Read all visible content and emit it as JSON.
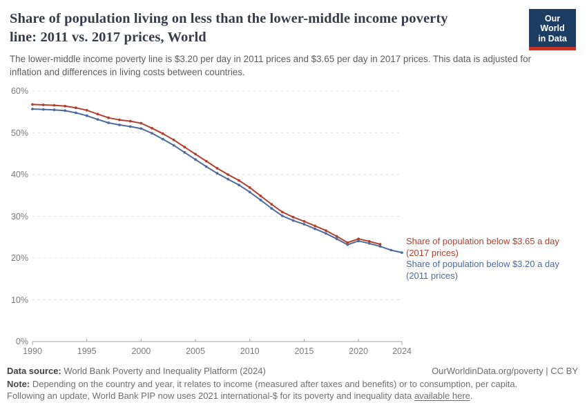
{
  "header": {
    "title": "Share of population living on less than the lower-middle income poverty line: 2011 vs. 2017 prices, World",
    "subtitle": "The lower-middle income poverty line is $3.20 per day in 2011 prices and $3.65 per day in 2017 prices. This data is adjusted for inflation and differences in living costs between countries.",
    "logo": {
      "line1": "Our World",
      "line2": "in Data"
    }
  },
  "chart_data": {
    "type": "line",
    "title": "Share of population living on less than the lower-middle income poverty line: 2011 vs. 2017 prices, World",
    "xlabel": "",
    "ylabel": "",
    "xlim": [
      1990,
      2024
    ],
    "ylim": [
      0,
      60
    ],
    "x_ticks": [
      1990,
      1995,
      2000,
      2005,
      2010,
      2015,
      2020,
      2024
    ],
    "y_ticks": [
      0,
      10,
      20,
      30,
      40,
      50,
      60
    ],
    "y_tick_suffix": "%",
    "grid": "horizontal-dashed",
    "legend_position": "right-of-line-ends",
    "series": [
      {
        "name": "Share of population below $3.65 a day (2017 prices)",
        "label_line1": "Share of population below $3.65 a day",
        "label_line2": "(2017 prices)",
        "color": "#b0402d",
        "years": [
          1990,
          1991,
          1992,
          1993,
          1994,
          1995,
          1996,
          1997,
          1998,
          1999,
          2000,
          2001,
          2002,
          2003,
          2004,
          2005,
          2006,
          2007,
          2008,
          2009,
          2010,
          2011,
          2012,
          2013,
          2014,
          2015,
          2016,
          2017,
          2018,
          2019,
          2020,
          2021,
          2022
        ],
        "values": [
          56.8,
          56.7,
          56.6,
          56.4,
          56.0,
          55.4,
          54.5,
          53.6,
          53.1,
          52.8,
          52.3,
          51.1,
          49.8,
          48.3,
          46.6,
          44.9,
          43.2,
          41.5,
          40.0,
          38.6,
          36.9,
          34.9,
          32.9,
          31.0,
          29.8,
          28.8,
          27.7,
          26.6,
          25.2,
          23.7,
          24.6,
          24.0,
          23.3
        ]
      },
      {
        "name": "Share of population below $3.20 a day (2011 prices)",
        "label_line1": "Share of population below $3.20 a day",
        "label_line2": "(2011 prices)",
        "color": "#4c6a9c",
        "years": [
          1990,
          1991,
          1992,
          1993,
          1994,
          1995,
          1996,
          1997,
          1998,
          1999,
          2000,
          2001,
          2002,
          2003,
          2004,
          2005,
          2006,
          2007,
          2008,
          2009,
          2010,
          2011,
          2012,
          2013,
          2014,
          2015,
          2016,
          2017,
          2018,
          2019,
          2020,
          2021,
          2022,
          2023,
          2024
        ],
        "values": [
          55.7,
          55.6,
          55.5,
          55.3,
          54.8,
          54.1,
          53.2,
          52.4,
          51.9,
          51.5,
          51.0,
          49.9,
          48.5,
          47.0,
          45.3,
          43.6,
          41.9,
          40.3,
          38.9,
          37.5,
          35.8,
          33.9,
          31.9,
          30.1,
          29.0,
          28.1,
          27.0,
          25.9,
          24.6,
          23.2,
          24.1,
          23.5,
          22.8,
          21.9,
          21.3
        ]
      }
    ]
  },
  "footer": {
    "datasource_label": "Data source:",
    "datasource_text": " World Bank Poverty and Inequality Platform (2024)",
    "attribution": "OurWorldinData.org/poverty | CC BY",
    "note_label": "Note:",
    "note_text": " Depending on the country and year, it relates to income (measured after taxes and benefits) or to consumption, per capita. Following an update, World Bank PIP now uses 2021 international-$ for its poverty and inequality data ",
    "note_link": "available here",
    "note_suffix": "."
  },
  "colors": {
    "series_2017_prices": "#b0402d",
    "series_2011_prices": "#4c6a9c",
    "logo_background": "#1d3d63",
    "logo_stripe": "#c5342b",
    "gridline": "#e0e0e0",
    "axis": "#a2a2a2",
    "tick_text": "#7b7b7b"
  }
}
